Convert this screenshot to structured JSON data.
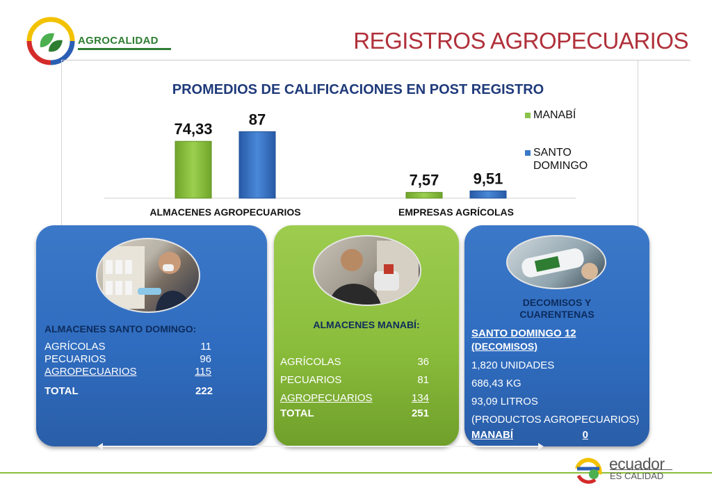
{
  "header": {
    "brand": "AGROCALIDAD",
    "title": "REGISTROS AGROPECUARIOS"
  },
  "chart_data": {
    "type": "bar",
    "title": "PROMEDIOS DE CALIFICACIONES EN POST REGISTRO",
    "categories": [
      "ALMACENES AGROPECUARIOS",
      "EMPRESAS AGRÍCOLAS"
    ],
    "series": [
      {
        "name": "MANABÍ",
        "values": [
          74.33,
          7.57
        ],
        "labels": [
          "74,33",
          "7,57"
        ],
        "color": "#8bc34a"
      },
      {
        "name": "SANTO DOMINGO",
        "values": [
          87,
          9.51
        ],
        "labels": [
          "87",
          "9,51"
        ],
        "color": "#3a78c8"
      }
    ],
    "legend_position": "right",
    "grid": false
  },
  "panels": {
    "santo_domingo": {
      "title": "ALMACENES  SANTO DOMINGO:",
      "rows": [
        {
          "label": "AGRÍCOLAS",
          "value": "11"
        },
        {
          "label": "PECUARIOS",
          "value": "96"
        },
        {
          "label": "AGROPECUARIOS",
          "value": "115"
        }
      ],
      "total_label": "TOTAL",
      "total_value": "222"
    },
    "manabi": {
      "title": "ALMACENES MANABÍ:",
      "rows": [
        {
          "label": "AGRÍCOLAS",
          "value": "36"
        },
        {
          "label": "PECUARIOS",
          "value": "81"
        },
        {
          "label": "AGROPECUARIOS",
          "value": "134"
        }
      ],
      "total_label": "TOTAL",
      "total_value": "251"
    },
    "decomisos": {
      "title_line1": "DECOMISOS Y",
      "title_line2": "CUARENTENAS",
      "sd_line": "SANTO DOMINGO 12",
      "sd_sub": "(DECOMISOS)",
      "items": [
        "1,820 UNIDADES",
        "686,43 KG",
        "93,09 LITROS",
        "(PRODUCTOS AGROPECUARIOS)"
      ],
      "manabi_label": "MANABÍ",
      "manabi_value": "0"
    }
  },
  "footer": {
    "brand_line1": "ecuador",
    "brand_line2": "ES CALIDAD"
  }
}
